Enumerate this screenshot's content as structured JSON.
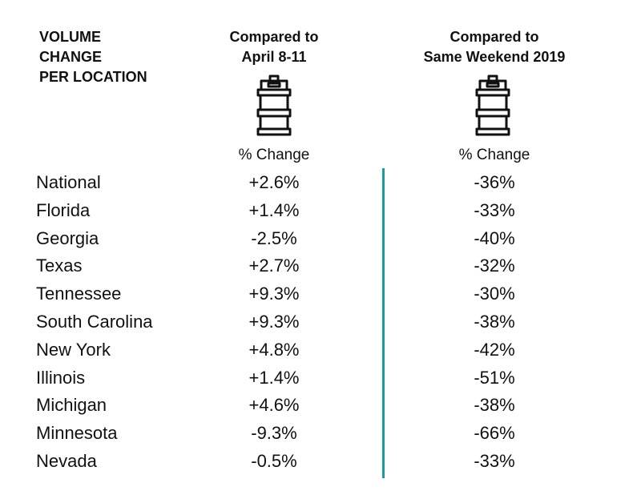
{
  "headers": {
    "row_label": [
      "VOLUME",
      "CHANGE",
      "PER LOCATION"
    ],
    "col1": [
      "Compared to",
      "April 8-11"
    ],
    "col2": [
      "Compared to",
      "Same Weekend 2019"
    ],
    "col1_sub": "% Change",
    "col2_sub": "% Change"
  },
  "icons": {
    "col1": "keg-icon",
    "col2": "keg-icon"
  },
  "colors": {
    "divider": "#1c9b98",
    "text": "#111111"
  },
  "chart_data": {
    "type": "table",
    "columns": [
      "VOLUME CHANGE PER LOCATION",
      "Compared to April 8-11",
      "Compared to Same Weekend 2019"
    ],
    "rows": [
      {
        "location": "National",
        "vs_april": "+2.6%",
        "vs_2019": "-36%"
      },
      {
        "location": "Florida",
        "vs_april": "+1.4%",
        "vs_2019": "-33%"
      },
      {
        "location": "Georgia",
        "vs_april": "-2.5%",
        "vs_2019": "-40%"
      },
      {
        "location": "Texas",
        "vs_april": "+2.7%",
        "vs_2019": "-32%"
      },
      {
        "location": "Tennessee",
        "vs_april": "+9.3%",
        "vs_2019": "-30%"
      },
      {
        "location": "South Carolina",
        "vs_april": "+9.3%",
        "vs_2019": "-38%"
      },
      {
        "location": "New York",
        "vs_april": "+4.8%",
        "vs_2019": "-42%"
      },
      {
        "location": "Illinois",
        "vs_april": "+1.4%",
        "vs_2019": "-51%"
      },
      {
        "location": "Michigan",
        "vs_april": "+4.6%",
        "vs_2019": "-38%"
      },
      {
        "location": "Minnesota",
        "vs_april": "-9.3%",
        "vs_2019": "-66%"
      },
      {
        "location": "Nevada",
        "vs_april": "-0.5%",
        "vs_2019": "-33%"
      }
    ]
  }
}
